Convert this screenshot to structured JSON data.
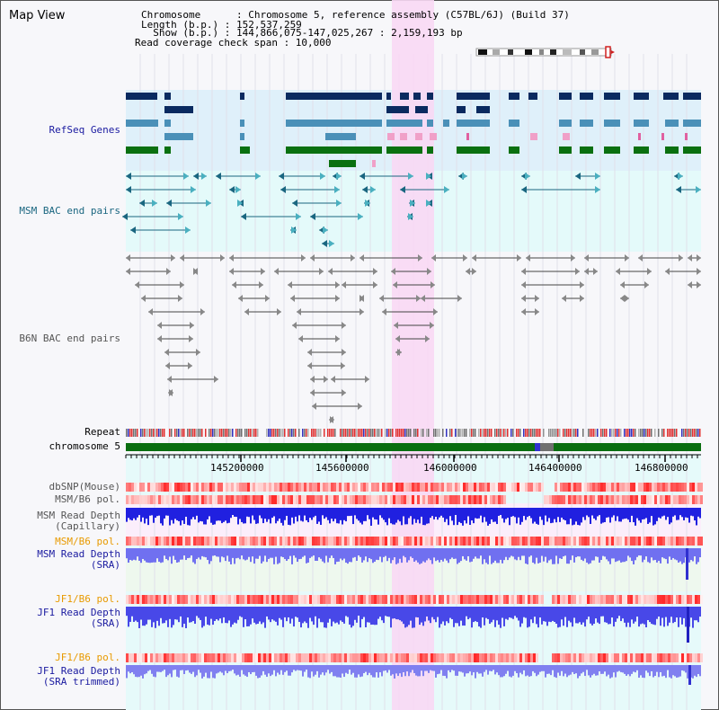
{
  "view_title": "Map View",
  "info": {
    "chromosome": "Chromosome      : Chromosome 5, reference assembly (C57BL/6J) (Build 37)",
    "length": "Length (b.p.) : 152,537,259",
    "show": "  Show (b.p.) : 144,866,075-147,025,267 : 2,159,193 bp",
    "read_span": "Read coverage check span : 10,000"
  },
  "tracks": {
    "refseq": "RefSeq Genes",
    "msm_bac": "MSM BAC end pairs",
    "b6n_bac": "B6N BAC end pairs",
    "repeat": "Repeat",
    "chromosome": "chromosome 5",
    "dbsnp": "dbSNP(Mouse)",
    "msm_b6_pol_1": "MSM/B6 pol.",
    "msm_depth_cap_1": "MSM Read Depth",
    "msm_depth_cap_2": "(Capillary)",
    "msm_b6_pol_2": "MSM/B6 pol.",
    "msm_depth_sra_1": "MSM Read Depth",
    "msm_depth_sra_2": "(SRA)",
    "jf1_b6_pol_1": "JF1/B6 pol.",
    "jf1_depth_sra_1": "JF1 Read Depth",
    "jf1_depth_sra_2": "(SRA)",
    "jf1_b6_pol_2": "JF1/B6 pol.",
    "jf1_depth_trim_1": "JF1 Read Depth",
    "jf1_depth_trim_2": "(SRA trimmed)"
  },
  "axis_ticks": [
    "145200000",
    "145600000",
    "146000000",
    "146400000",
    "146800000"
  ],
  "colors": {
    "label_blue": "#1a1aa0",
    "label_teal": "#1a6680",
    "label_orange": "#e89a00",
    "label_gray": "#555555",
    "refseq_bg": "#dff0fa",
    "msm_bg": "#e4fafa",
    "highlight": "#f8d8f4",
    "gene_navy": "#0a2a60",
    "gene_steel": "#4a90b8",
    "gene_green": "#0a7010"
  }
}
